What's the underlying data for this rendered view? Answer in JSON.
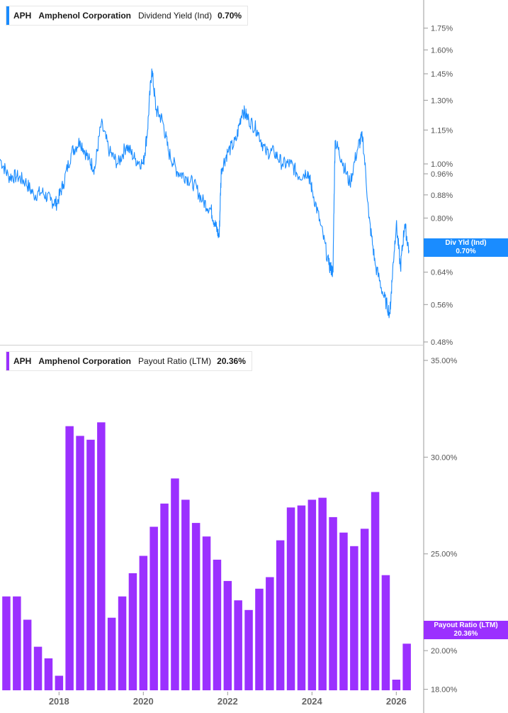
{
  "colors": {
    "yield": "#1a8cff",
    "payout": "#9b30ff",
    "axis": "#9a9a9a",
    "text": "#555555"
  },
  "top_legend": {
    "ticker": "APH",
    "company": "Amphenol Corporation",
    "metric": "Dividend Yield (Ind)",
    "value": "0.70%"
  },
  "top_tag": {
    "label": "Div Yld (Ind)",
    "value": "0.70%"
  },
  "bottom_legend": {
    "ticker": "APH",
    "company": "Amphenol Corporation",
    "metric": "Payout Ratio (LTM)",
    "value": "20.36%"
  },
  "bottom_tag": {
    "label": "Payout Ratio (LTM)",
    "value": "20.36%"
  },
  "chart_data": [
    {
      "type": "line",
      "series": [
        {
          "name": "Dividend Yield (Ind)"
        }
      ],
      "y_scale": "log",
      "y_ticks": [
        "1.75%",
        "1.60%",
        "1.45%",
        "1.30%",
        "1.15%",
        "1.00%",
        "0.96%",
        "0.88%",
        "0.80%",
        "0.64%",
        "0.56%",
        "0.48%"
      ],
      "y_tick_values": [
        1.75,
        1.6,
        1.45,
        1.3,
        1.15,
        1.0,
        0.96,
        0.88,
        0.8,
        0.64,
        0.56,
        0.48
      ],
      "ylim": [
        0.48,
        1.92
      ],
      "x": [
        2016.6,
        2016.8,
        2017.0,
        2017.2,
        2017.4,
        2017.6,
        2017.8,
        2017.95,
        2018.1,
        2018.3,
        2018.5,
        2018.7,
        2018.85,
        2019.0,
        2019.2,
        2019.4,
        2019.6,
        2019.8,
        2020.0,
        2020.1,
        2020.2,
        2020.3,
        2020.45,
        2020.6,
        2020.8,
        2021.0,
        2021.2,
        2021.4,
        2021.6,
        2021.7,
        2021.8,
        2021.85,
        2022.0,
        2022.2,
        2022.35,
        2022.5,
        2022.7,
        2022.9,
        2023.1,
        2023.3,
        2023.5,
        2023.7,
        2023.9,
        2024.0,
        2024.2,
        2024.4,
        2024.5,
        2024.55,
        2024.7,
        2024.9,
        2025.1,
        2025.2,
        2025.35,
        2025.5,
        2025.7,
        2025.85,
        2025.9,
        2026.0,
        2026.1,
        2026.2,
        2026.3
      ],
      "y": [
        1.02,
        0.95,
        0.95,
        0.93,
        0.88,
        0.89,
        0.86,
        0.85,
        0.92,
        1.05,
        1.1,
        1.02,
        0.98,
        1.18,
        1.05,
        1.0,
        1.08,
        1.02,
        1.0,
        1.15,
        1.48,
        1.25,
        1.2,
        1.05,
        0.97,
        0.95,
        0.92,
        0.86,
        0.83,
        0.78,
        0.74,
        0.98,
        1.05,
        1.1,
        1.25,
        1.2,
        1.15,
        1.05,
        1.05,
        1.0,
        1.0,
        0.95,
        0.97,
        0.9,
        0.78,
        0.66,
        0.64,
        1.1,
        1.02,
        0.92,
        1.08,
        1.12,
        0.8,
        0.66,
        0.58,
        0.54,
        0.62,
        0.78,
        0.65,
        0.78,
        0.7
      ],
      "x_ticks": [
        "2018",
        "2020",
        "2022",
        "2024",
        "2026"
      ],
      "x_tick_values": [
        2018,
        2020,
        2022,
        2024,
        2026
      ],
      "xlim": [
        2016.6,
        2026.65
      ],
      "grid": false,
      "legend": "top-left"
    },
    {
      "type": "bar",
      "series": [
        {
          "name": "Payout Ratio (LTM)"
        }
      ],
      "y_ticks": [
        "35.00%",
        "30.00%",
        "25.00%",
        "20.00%",
        "18.00%"
      ],
      "y_tick_values": [
        35,
        30,
        25,
        20,
        18
      ],
      "ylim": [
        17.95,
        35.0
      ],
      "x": [
        2016.75,
        2017.0,
        2017.25,
        2017.5,
        2017.75,
        2018.0,
        2018.25,
        2018.5,
        2018.75,
        2019.0,
        2019.25,
        2019.5,
        2019.75,
        2020.0,
        2020.25,
        2020.5,
        2020.75,
        2021.0,
        2021.25,
        2021.5,
        2021.75,
        2022.0,
        2022.25,
        2022.5,
        2022.75,
        2023.0,
        2023.25,
        2023.5,
        2023.75,
        2024.0,
        2024.25,
        2024.5,
        2024.75,
        2025.0,
        2025.25,
        2025.5,
        2025.75,
        2026.0,
        2026.25
      ],
      "values": [
        22.8,
        22.8,
        21.6,
        20.2,
        19.6,
        18.7,
        31.6,
        31.1,
        30.9,
        31.8,
        21.7,
        22.8,
        24.0,
        24.9,
        26.4,
        27.6,
        28.9,
        27.8,
        26.6,
        25.9,
        24.7,
        23.6,
        22.6,
        22.1,
        23.2,
        23.8,
        25.7,
        27.4,
        27.5,
        27.8,
        27.9,
        26.9,
        26.1,
        25.4,
        26.3,
        28.2,
        23.9,
        18.5,
        20.36
      ],
      "x_ticks": [
        "2018",
        "2020",
        "2022",
        "2024",
        "2026"
      ],
      "x_tick_values": [
        2018,
        2020,
        2022,
        2024,
        2026
      ],
      "xlim": [
        2016.6,
        2026.65
      ],
      "grid": false,
      "legend": "top-left"
    }
  ]
}
